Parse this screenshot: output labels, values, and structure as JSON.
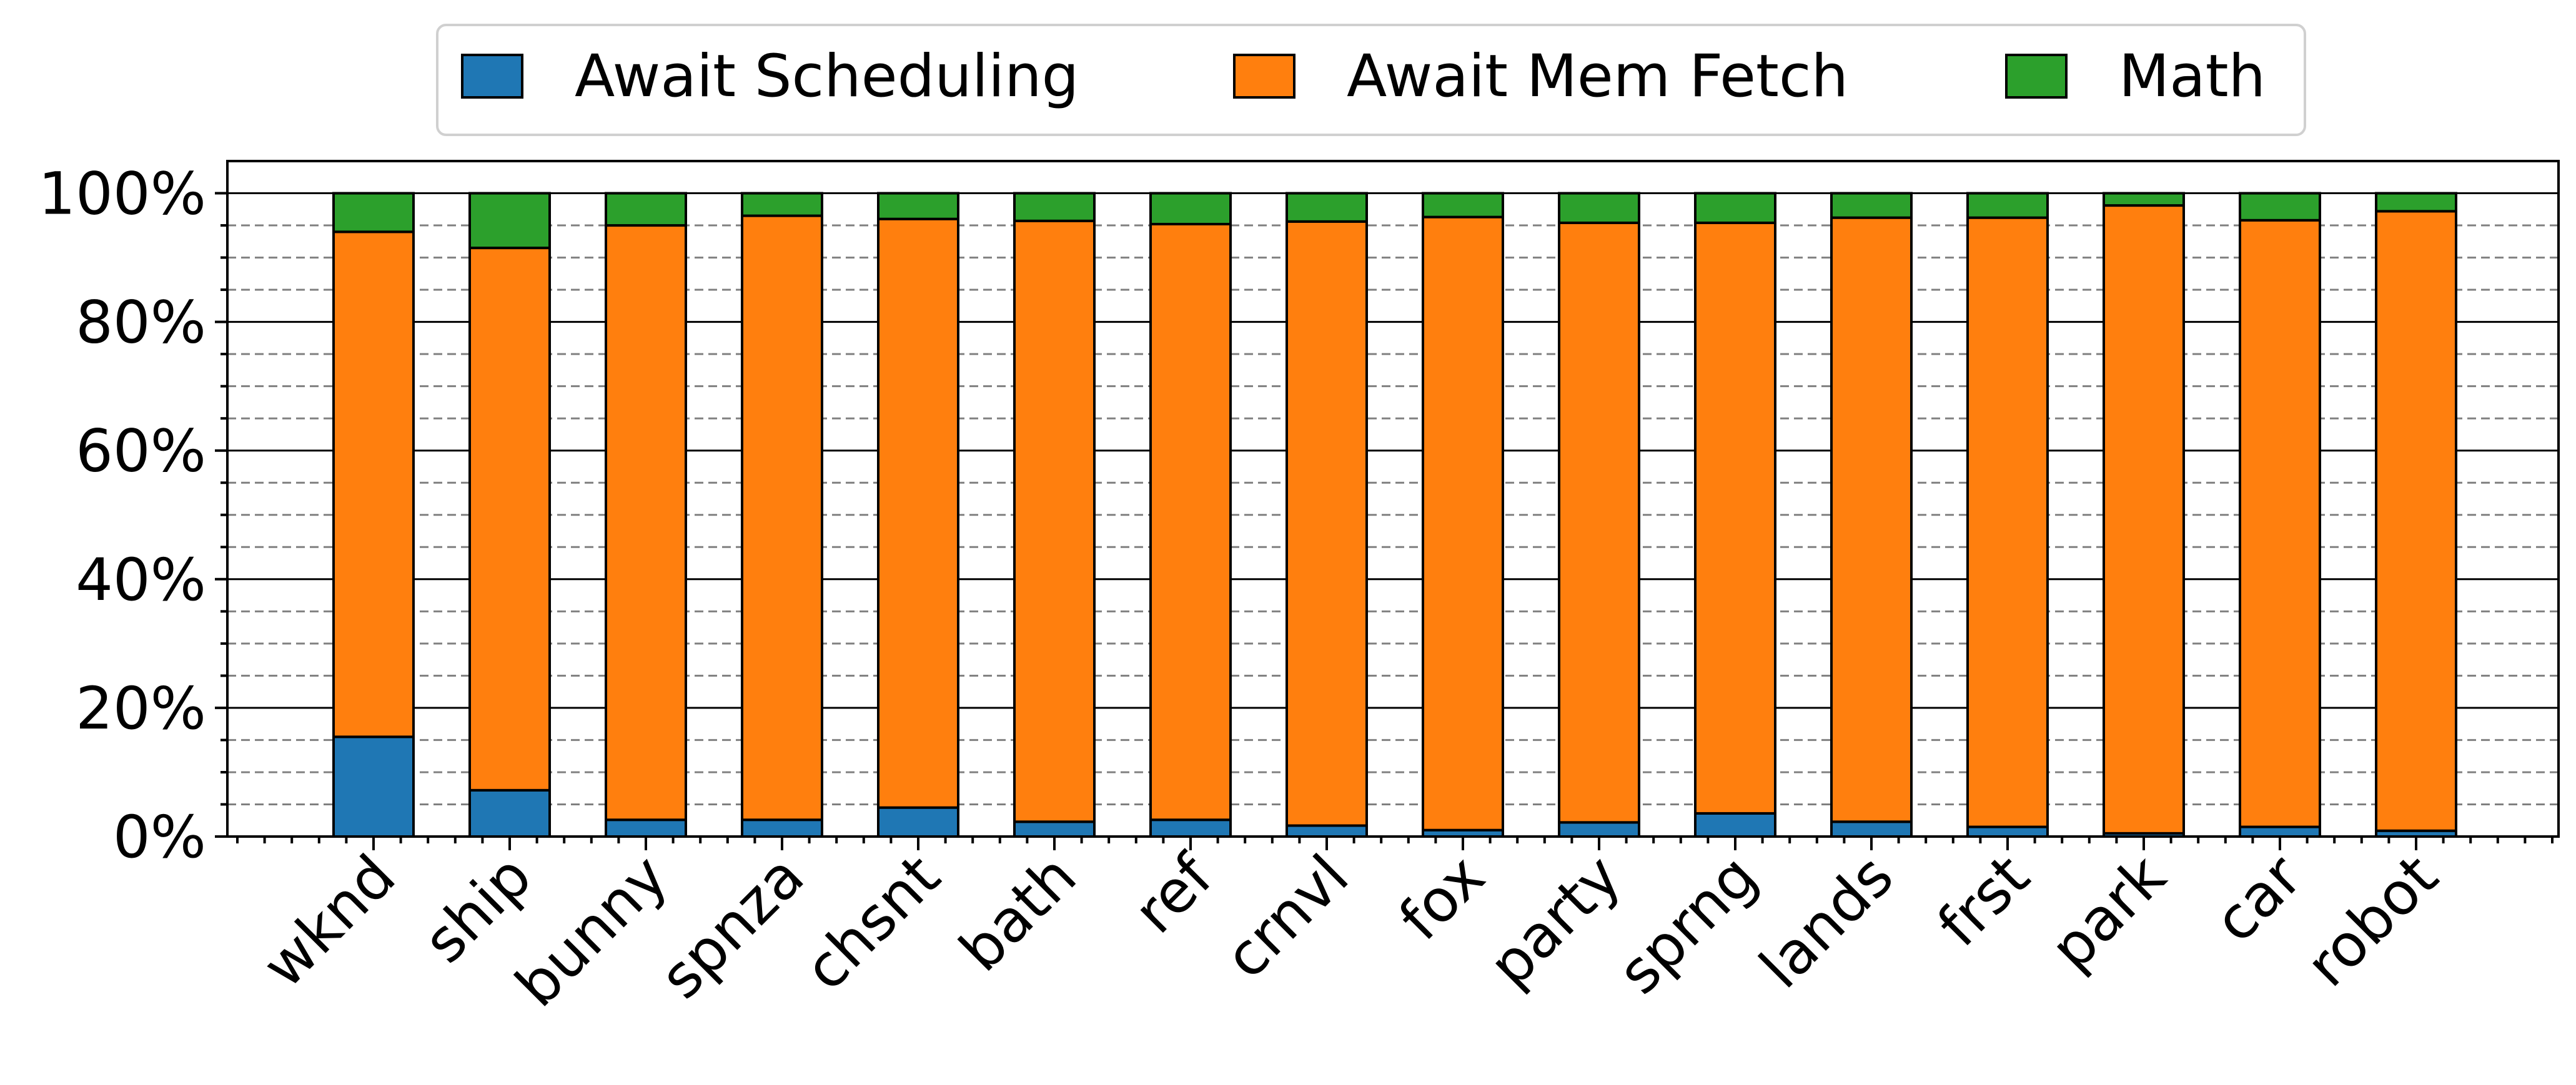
{
  "chart_data": {
    "type": "bar",
    "stacked": true,
    "categories": [
      "wknd",
      "ship",
      "bunny",
      "spnza",
      "chsnt",
      "bath",
      "ref",
      "crnvl",
      "fox",
      "party",
      "sprng",
      "lands",
      "frst",
      "park",
      "car",
      "robot"
    ],
    "series": [
      {
        "name": "Await Scheduling",
        "color": "#1f77b4",
        "values": [
          15.5,
          7.2,
          2.6,
          2.6,
          4.5,
          2.3,
          2.6,
          1.7,
          1.0,
          2.2,
          3.6,
          2.3,
          1.5,
          0.5,
          1.5,
          0.9
        ]
      },
      {
        "name": "Await Mem Fetch",
        "color": "#ff7f0e",
        "values": [
          78.5,
          84.3,
          92.4,
          93.9,
          91.5,
          93.4,
          92.6,
          93.9,
          95.3,
          93.2,
          91.8,
          93.9,
          94.7,
          97.6,
          94.3,
          96.3
        ]
      },
      {
        "name": "Math",
        "color": "#2ca02c",
        "values": [
          6.0,
          8.5,
          5.0,
          3.5,
          4.0,
          4.3,
          4.8,
          4.4,
          3.7,
          4.6,
          4.6,
          3.8,
          3.8,
          1.9,
          4.2,
          2.8
        ]
      }
    ],
    "yticks": [
      "0%",
      "20%",
      "40%",
      "60%",
      "80%",
      "100%"
    ],
    "ylim": [
      0,
      105
    ],
    "grid": {
      "major": true,
      "minor_dashed": true
    },
    "legend": {
      "placement": "top-center",
      "columns": 3
    },
    "title": "",
    "xlabel": "",
    "ylabel": ""
  }
}
